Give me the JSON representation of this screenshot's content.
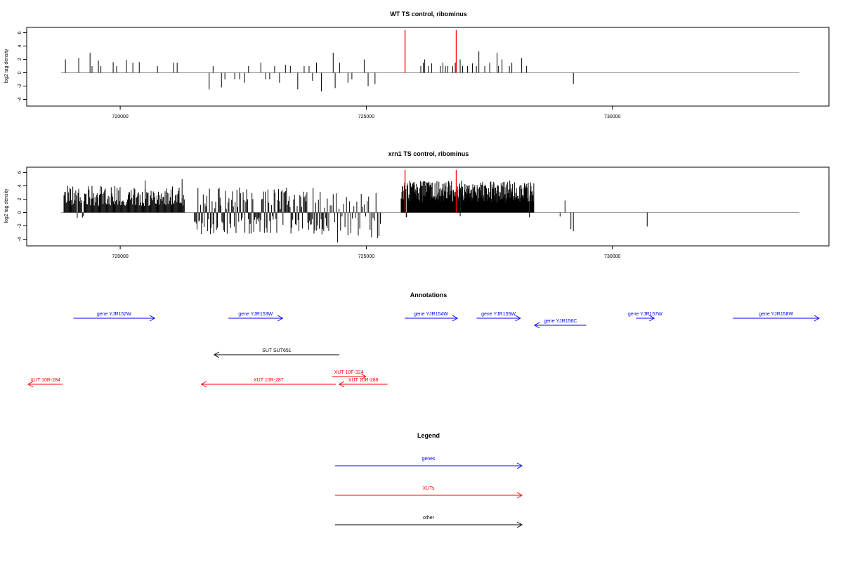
{
  "chart_data": [
    {
      "type": "bar",
      "title": "WT TS control, ribominus",
      "ylabel": "log2 tag density",
      "xlabel": "",
      "xlim": [
        718100,
        734400
      ],
      "ylim": [
        -5,
        6.8
      ],
      "yticks": [
        -4,
        -2,
        0,
        2,
        4,
        6
      ],
      "xticks": [
        720000,
        725000,
        730000
      ],
      "xtick_labels": [
        "720000",
        "725000",
        "730000"
      ],
      "baseline_range": [
        718800,
        733800
      ],
      "colors": {
        "bars": "#000000",
        "highlight": "#ff0000",
        "baseline": "#a0a0a0"
      },
      "x": [
        718880,
        719150,
        719380,
        719420,
        719550,
        719600,
        719850,
        719920,
        720120,
        720250,
        720380,
        720750,
        721080,
        721150,
        721800,
        721880,
        722050,
        722120,
        722320,
        722420,
        722520,
        722600,
        722850,
        722950,
        723030,
        723130,
        723230,
        723350,
        723450,
        723600,
        723730,
        723830,
        723900,
        723980,
        724080,
        724320,
        724360,
        724450,
        724620,
        724700,
        724950,
        725030,
        725170,
        726100,
        726150,
        726180,
        726250,
        726320,
        726500,
        726550,
        726600,
        726650,
        726750,
        726800,
        726900,
        726950,
        727050,
        727150,
        727230,
        727280,
        727400,
        727500,
        727650,
        727680,
        727750,
        727900,
        727950,
        728150,
        728250,
        729200
      ],
      "values": [
        2,
        2.2,
        3,
        1,
        1.8,
        1,
        1.6,
        1,
        1.9,
        1.5,
        1.6,
        1,
        1.5,
        1.5,
        -2.5,
        1,
        -2.2,
        -1,
        -1,
        -1,
        -1.5,
        1,
        1.5,
        -1,
        -1,
        1,
        -1.5,
        1.2,
        1,
        -2.5,
        1,
        1,
        -1.2,
        1.5,
        -2.8,
        3,
        -2.3,
        1.5,
        -1.5,
        -1,
        2,
        -2,
        -1.7,
        1,
        1.5,
        2,
        1,
        1.4,
        1,
        1.5,
        1,
        1,
        1,
        1.5,
        2,
        1,
        1,
        1.4,
        1,
        3.2,
        1,
        1.5,
        3,
        1,
        2,
        1,
        1.5,
        2.2,
        1,
        -1.7
      ],
      "highlights": [
        725780,
        726820
      ],
      "highlight_value": 6.4
    },
    {
      "type": "bar",
      "title": "xrn1 TS control, ribominus",
      "ylabel": "log2 tag density",
      "xlabel": "",
      "xlim": [
        718100,
        734400
      ],
      "ylim": [
        -5,
        6.8
      ],
      "yticks": [
        -4,
        -2,
        0,
        2,
        4,
        6
      ],
      "xticks": [
        720000,
        725000,
        730000
      ],
      "xtick_labels": [
        "720000",
        "725000",
        "730000"
      ],
      "baseline_range": [
        718800,
        733800
      ],
      "colors": {
        "bars": "#000000",
        "highlight": "#ff0000",
        "baseline": "#a0a0a0"
      },
      "dense_regions": [
        {
          "start": 718850,
          "end": 721300,
          "step": 15,
          "min": 1,
          "max": 4,
          "neg_prob": 0.03
        },
        {
          "start": 721500,
          "end": 724200,
          "step": 18,
          "min": -2.8,
          "max": 4,
          "neg_prob": 0.55
        },
        {
          "start": 724200,
          "end": 725300,
          "step": 30,
          "min": -3.5,
          "max": 3,
          "neg_prob": 0.5
        },
        {
          "start": 725700,
          "end": 728400,
          "step": 8,
          "min": 1.5,
          "max": 4.8,
          "neg_prob": 0.01
        }
      ],
      "x": [
        720500,
        721250,
        724410,
        725250,
        728930,
        729030,
        729150,
        729200,
        730700
      ],
      "values": [
        4.8,
        5,
        -4.5,
        -3.4,
        -0.6,
        1.8,
        -2.5,
        -2.8,
        -2.1
      ],
      "highlights": [
        725780,
        726820
      ],
      "highlight_value": 6.4
    }
  ],
  "annotations": {
    "title": "Annotations",
    "items": [
      {
        "label": "gene YJR152W",
        "color": "#0000ff",
        "dir": "right",
        "x1": 719050,
        "x2": 720700,
        "lane": 0
      },
      {
        "label": "gene YJR153W",
        "color": "#0000ff",
        "dir": "right",
        "x1": 722200,
        "x2": 723300,
        "lane": 0
      },
      {
        "label": "gene YJR154W",
        "color": "#0000ff",
        "dir": "right",
        "x1": 725780,
        "x2": 726850,
        "lane": 0
      },
      {
        "label": "gene YJR155W",
        "color": "#0000ff",
        "dir": "right",
        "x1": 727240,
        "x2": 728130,
        "lane": 0
      },
      {
        "label": "gene YJR156C",
        "color": "#0000ff",
        "dir": "left",
        "x1": 728420,
        "x2": 729470,
        "lane": 1
      },
      {
        "label": "gene YJR157W",
        "color": "#0000ff",
        "dir": "right",
        "x1": 730480,
        "x2": 730850,
        "lane": 0
      },
      {
        "label": "gene YJR158W",
        "color": "#0000ff",
        "dir": "right",
        "x1": 732450,
        "x2": 734200,
        "lane": 0
      },
      {
        "label": "SUT SUT651",
        "color": "#000000",
        "dir": "left",
        "x1": 721910,
        "x2": 724450,
        "lane": 2
      },
      {
        "label": "XUT 10F-324",
        "color": "#ff0000",
        "dir": "right",
        "x1": 724300,
        "x2": 724990,
        "lane": 3
      },
      {
        "label": "XUT 10R-284",
        "color": "#ff0000",
        "dir": "left",
        "x1": 718130,
        "x2": 718830,
        "lane": 4
      },
      {
        "label": "XUT 10R-287",
        "color": "#ff0000",
        "dir": "left",
        "x1": 721650,
        "x2": 724380,
        "lane": 4
      },
      {
        "label": "XUT 10R-288",
        "color": "#ff0000",
        "dir": "left",
        "x1": 724450,
        "x2": 725430,
        "lane": 4
      }
    ]
  },
  "legend": {
    "title": "Legend",
    "items": [
      {
        "label": "genes",
        "color": "#0000ff"
      },
      {
        "label": "XUTs",
        "color": "#ff0000"
      },
      {
        "label": "other",
        "color": "#000000"
      }
    ]
  }
}
